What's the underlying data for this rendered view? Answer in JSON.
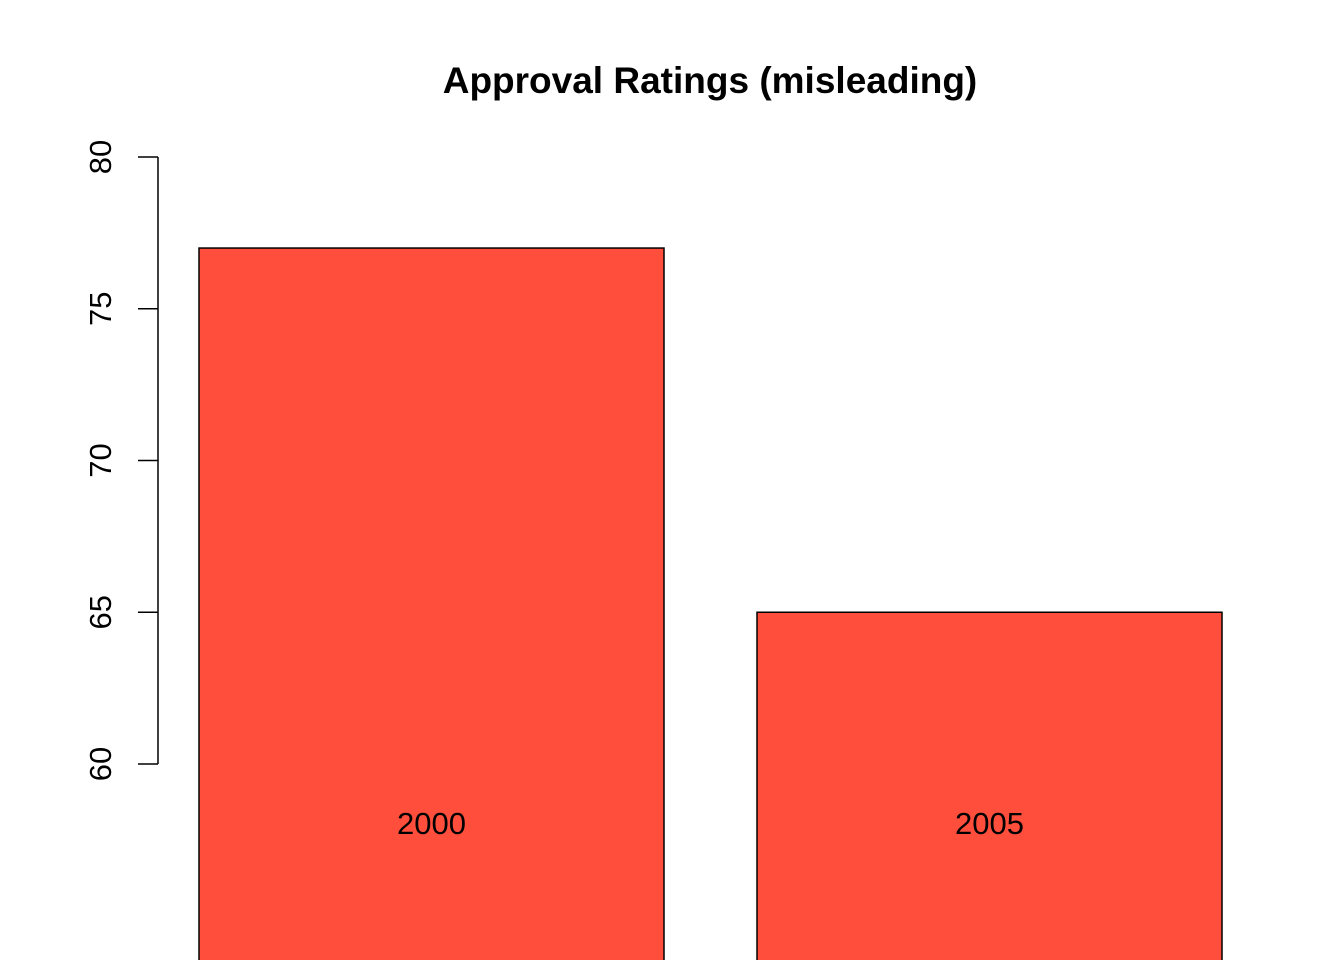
{
  "chart_data": {
    "type": "bar",
    "title": "Approval Ratings (misleading)",
    "categories": [
      "2000",
      "2005"
    ],
    "values": [
      77,
      65
    ],
    "xlabel": "",
    "ylabel": "",
    "ylim": [
      60,
      80
    ],
    "yticks": [
      60,
      65,
      70,
      75,
      80
    ],
    "bar_color": "#FF4F3C",
    "grid": false,
    "legend": "none"
  }
}
